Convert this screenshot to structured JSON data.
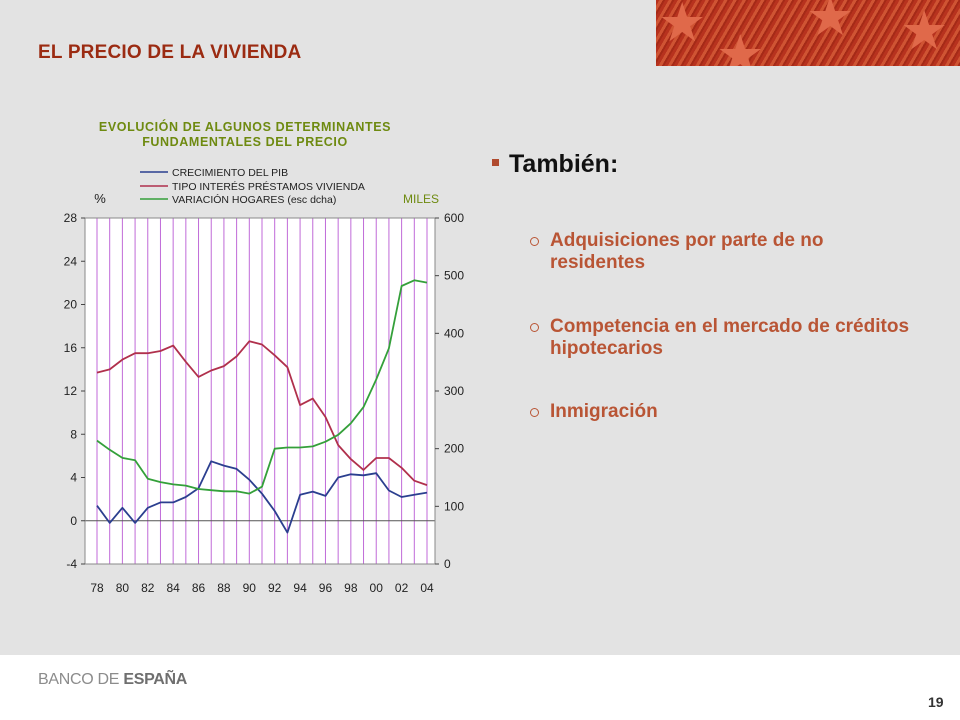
{
  "header": {
    "title": "EL PRECIO DE LA VIVIENDA"
  },
  "bullets": {
    "main": "También:",
    "items": [
      "Adquisiciones por parte de no residentes",
      "Competencia en el mercado de créditos hipotecarios",
      "Inmigración"
    ]
  },
  "footer": {
    "logo_part1": "BANCO DE ",
    "logo_part2": "ESPAÑA",
    "page_number": "19"
  },
  "colors": {
    "pib": "#2b3f8f",
    "tipo": "#b0304c",
    "hogares": "#34a03a",
    "grid": "#c06ad8",
    "banner": "#b7321e"
  },
  "chart_data": {
    "type": "line",
    "title_line1": "EVOLUCIÓN DE ALGUNOS DETERMINANTES",
    "title_line2": "FUNDAMENTALES DEL PRECIO",
    "ylabel_left": "%",
    "ylabel_right": "MILES",
    "ylim_left": [
      -4,
      28
    ],
    "ylim_right": [
      0,
      600
    ],
    "yticks_left": [
      -4,
      0,
      4,
      8,
      12,
      16,
      20,
      24,
      28
    ],
    "yticks_right": [
      0,
      100,
      200,
      300,
      400,
      500,
      600
    ],
    "xticks": [
      "78",
      "80",
      "82",
      "84",
      "86",
      "88",
      "90",
      "92",
      "94",
      "96",
      "98",
      "00",
      "02",
      "04"
    ],
    "x_range": [
      1978,
      2004
    ],
    "grid": "vertical",
    "legend_position": "top",
    "series": [
      {
        "name": "CRECIMIENTO DEL PIB",
        "axis": "left",
        "x": [
          1978,
          1979,
          1980,
          1981,
          1982,
          1983,
          1984,
          1985,
          1986,
          1987,
          1988,
          1989,
          1990,
          1991,
          1992,
          1993,
          1994,
          1995,
          1996,
          1997,
          1998,
          1999,
          2000,
          2001,
          2002,
          2003,
          2004
        ],
        "values": [
          1.4,
          -0.2,
          1.2,
          -0.2,
          1.2,
          1.7,
          1.7,
          2.2,
          3.0,
          5.5,
          5.1,
          4.8,
          3.8,
          2.5,
          0.9,
          -1.1,
          2.4,
          2.7,
          2.3,
          4.0,
          4.3,
          4.2,
          4.4,
          2.8,
          2.2,
          2.4,
          2.6
        ]
      },
      {
        "name": "TIPO INTERÉS PRÉSTAMOS VIVIENDA",
        "axis": "left",
        "x": [
          1978,
          1979,
          1980,
          1981,
          1982,
          1983,
          1984,
          1985,
          1986,
          1987,
          1988,
          1989,
          1990,
          1991,
          1992,
          1993,
          1994,
          1995,
          1996,
          1997,
          1998,
          1999,
          2000,
          2001,
          2002,
          2003,
          2004
        ],
        "values": [
          13.7,
          14.0,
          14.9,
          15.5,
          15.5,
          15.7,
          16.2,
          14.7,
          13.3,
          13.9,
          14.3,
          15.2,
          16.6,
          16.3,
          15.3,
          14.2,
          10.7,
          11.3,
          9.6,
          7.0,
          5.7,
          4.7,
          5.8,
          5.8,
          4.9,
          3.7,
          3.3
        ]
      },
      {
        "name": "VARIACIÓN HOGARES (esc dcha)",
        "axis": "right",
        "x": [
          1978,
          1979,
          1980,
          1981,
          1982,
          1983,
          1984,
          1985,
          1986,
          1987,
          1988,
          1989,
          1990,
          1991,
          1992,
          1993,
          1994,
          1995,
          1996,
          1997,
          1998,
          1999,
          2000,
          2001,
          2002,
          2003,
          2004
        ],
        "values": [
          214,
          198,
          184,
          180,
          148,
          142,
          138,
          136,
          130,
          128,
          126,
          126,
          122,
          134,
          200,
          202,
          202,
          204,
          212,
          224,
          244,
          272,
          320,
          374,
          482,
          492,
          488
        ]
      }
    ]
  }
}
